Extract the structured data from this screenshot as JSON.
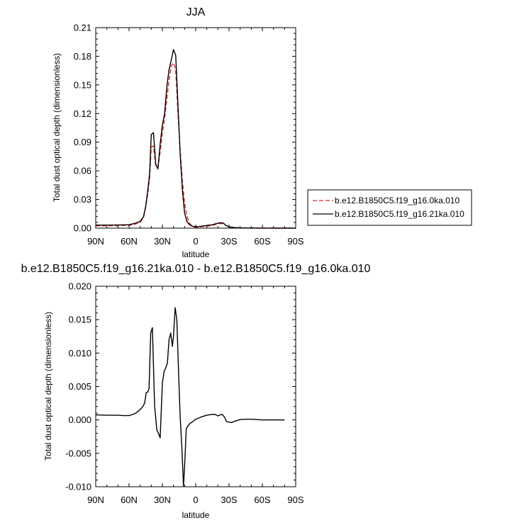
{
  "chart_data": [
    {
      "type": "line",
      "title": "JJA",
      "xlabel": "latitude",
      "ylabel": "Total dust optical depth (dimensionless)",
      "xlim": [
        90,
        -90
      ],
      "ylim": [
        0,
        0.21
      ],
      "x_tick_values": [
        90,
        60,
        30,
        0,
        -30,
        -60,
        -90
      ],
      "x_tick_labels": [
        "90N",
        "60N",
        "30N",
        "0",
        "30S",
        "60S",
        "90S"
      ],
      "y_tick_values": [
        0,
        0.03,
        0.06,
        0.09,
        0.12,
        0.15,
        0.18,
        0.21
      ],
      "y_tick_labels": [
        "0.00",
        "0.03",
        "0.06",
        "0.09",
        "0.12",
        "0.15",
        "0.18",
        "0.21"
      ],
      "grid": false,
      "legend": "right",
      "series": [
        {
          "name": "b.e12.B1850C5.f19_g16.0ka.010",
          "color": "#e8242a",
          "dash": "dashed",
          "x": [
            90,
            80,
            70,
            60,
            55,
            50,
            47,
            45,
            43,
            41.5,
            40,
            38,
            36,
            34,
            32,
            30,
            28,
            26,
            24,
            22,
            20,
            18,
            16,
            14,
            12,
            10,
            8,
            6,
            4,
            2,
            0,
            -2,
            -5,
            -10,
            -15,
            -18,
            -22,
            -25,
            -27,
            -30,
            -35,
            -40,
            -50,
            -60,
            -70,
            -80,
            -90
          ],
          "y": [
            0.0025,
            0.0025,
            0.0026,
            0.003,
            0.004,
            0.006,
            0.011,
            0.022,
            0.037,
            0.052,
            0.085,
            0.086,
            0.066,
            0.063,
            0.08,
            0.1,
            0.115,
            0.135,
            0.155,
            0.17,
            0.173,
            0.166,
            0.12,
            0.082,
            0.05,
            0.026,
            0.013,
            0.006,
            0.003,
            0.0015,
            0.001,
            0.001,
            0.0015,
            0.002,
            0.003,
            0.0038,
            0.005,
            0.0045,
            0.003,
            0.0015,
            0.0005,
            0.0002,
            0.0001,
            5e-05,
            0,
            0,
            0
          ]
        },
        {
          "name": "b.e12.B1850C5.f19_g16.21ka.010",
          "color": "#000000",
          "dash": "solid",
          "x": [
            90,
            80,
            70,
            60,
            55,
            50,
            47,
            45,
            43,
            41.5,
            40,
            38,
            36,
            34,
            32,
            30,
            28,
            26,
            24,
            22,
            20,
            18,
            16,
            14,
            12,
            10,
            8,
            6,
            4,
            2,
            0,
            -2,
            -5,
            -10,
            -15,
            -18,
            -22,
            -25,
            -27,
            -30,
            -35,
            -40,
            -50,
            -60,
            -70,
            -80,
            -90
          ],
          "y": [
            0.0032,
            0.0032,
            0.0033,
            0.0036,
            0.005,
            0.007,
            0.012,
            0.023,
            0.041,
            0.057,
            0.098,
            0.1,
            0.067,
            0.062,
            0.088,
            0.108,
            0.12,
            0.148,
            0.166,
            0.176,
            0.187,
            0.181,
            0.13,
            0.078,
            0.04,
            0.016,
            0.007,
            0.004,
            0.0025,
            0.0018,
            0.0015,
            0.0015,
            0.002,
            0.0028,
            0.0036,
            0.0046,
            0.0057,
            0.0052,
            0.003,
            0.0012,
            0.0006,
            0.0003,
            0.0001,
            5e-05,
            0,
            0,
            0
          ]
        }
      ]
    },
    {
      "type": "line",
      "title": "b.e12.B1850C5.f19_g16.21ka.010 - b.e12.B1850C5.f19_g16.0ka.010",
      "xlabel": "latitude",
      "ylabel": "Total dust optical depth (dimensionless)",
      "xlim": [
        90,
        -90
      ],
      "ylim": [
        -0.01,
        0.02
      ],
      "x_tick_values": [
        90,
        60,
        30,
        0,
        -30,
        -60,
        -90
      ],
      "x_tick_labels": [
        "90N",
        "60N",
        "30N",
        "0",
        "30S",
        "60S",
        "90S"
      ],
      "y_tick_values": [
        -0.01,
        -0.005,
        0,
        0.005,
        0.01,
        0.015,
        0.02
      ],
      "y_tick_labels": [
        "-0.010",
        "-0.005",
        "0.000",
        "0.005",
        "0.010",
        "0.015",
        "0.020"
      ],
      "grid": false,
      "series": [
        {
          "color": "#000000",
          "dash": "solid",
          "x": [
            90,
            80,
            70,
            65,
            60,
            57,
            54,
            51,
            48,
            46,
            44.5,
            43,
            42,
            40.5,
            39,
            37,
            35,
            33,
            32,
            30,
            28.5,
            27,
            25.5,
            24,
            22.5,
            21,
            20,
            18.5,
            17,
            15.5,
            14,
            12.5,
            11,
            10,
            8.5,
            7,
            5,
            3,
            0,
            -3,
            -6,
            -10,
            -14,
            -17,
            -20,
            -22,
            -24,
            -26,
            -27.5,
            -29,
            -32,
            -35,
            -40,
            -45,
            -50,
            -55,
            -60,
            -65,
            -70,
            -75,
            -80
          ],
          "y": [
            0.00075,
            0.0007,
            0.0007,
            0.00065,
            0.00065,
            0.0008,
            0.001,
            0.0014,
            0.0019,
            0.0025,
            0.0041,
            0.0042,
            0.0047,
            0.013,
            0.0138,
            0.0021,
            -0.0015,
            -0.0022,
            -0.0027,
            0.0055,
            0.0072,
            0.0078,
            0.0085,
            0.012,
            0.013,
            0.011,
            0.0125,
            0.0168,
            0.015,
            0.0075,
            0.0005,
            -0.004,
            -0.0099,
            -0.007,
            -0.0013,
            -0.0009,
            -0.0005,
            -0.0003,
            0.0001,
            0.0003,
            0.0005,
            0.0007,
            0.0008,
            0.00085,
            0.0006,
            0.00075,
            0.0008,
            0.0004,
            -0.0002,
            -0.0003,
            -0.0004,
            -0.0002,
            5e-05,
            0.0001,
            0.0001,
            5e-05,
            0,
            0,
            0,
            0,
            0
          ]
        }
      ]
    }
  ]
}
